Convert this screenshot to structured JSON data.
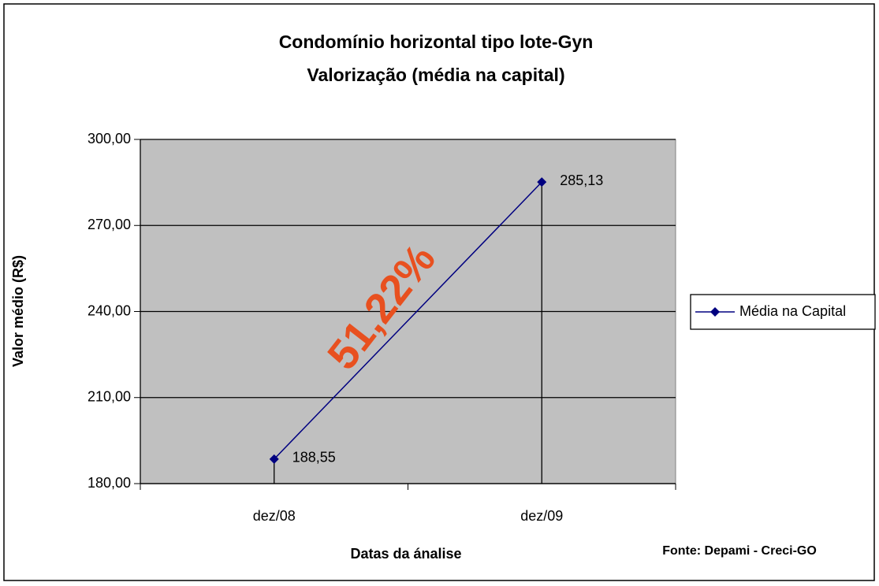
{
  "chart_data": {
    "type": "line",
    "title": [
      "Condomínio horizontal tipo lote-Gyn",
      "Valorização (média na capital)"
    ],
    "x_label": "Datas da ánalise",
    "y_label": "Valor médio (R$)",
    "source": "Fonte: Depami - Creci-GO",
    "annotation": "51,22%",
    "annotation_color": "#e8501f",
    "categories": [
      "dez/08",
      "dez/09"
    ],
    "series": [
      {
        "name": "Média na Capital",
        "color": "#000080",
        "values": [
          188.55,
          285.13
        ],
        "value_labels": [
          "188,55",
          "285,13"
        ]
      }
    ],
    "ylim": [
      180,
      300
    ],
    "yticks": [
      {
        "value": 180,
        "label": "180,00"
      },
      {
        "value": 210,
        "label": "210,00"
      },
      {
        "value": 240,
        "label": "240,00"
      },
      {
        "value": 270,
        "label": "270,00"
      },
      {
        "value": 300,
        "label": "300,00"
      }
    ],
    "grid": true,
    "drop_lines": true,
    "legend": "right",
    "plot_background": "#c0c0c0"
  }
}
